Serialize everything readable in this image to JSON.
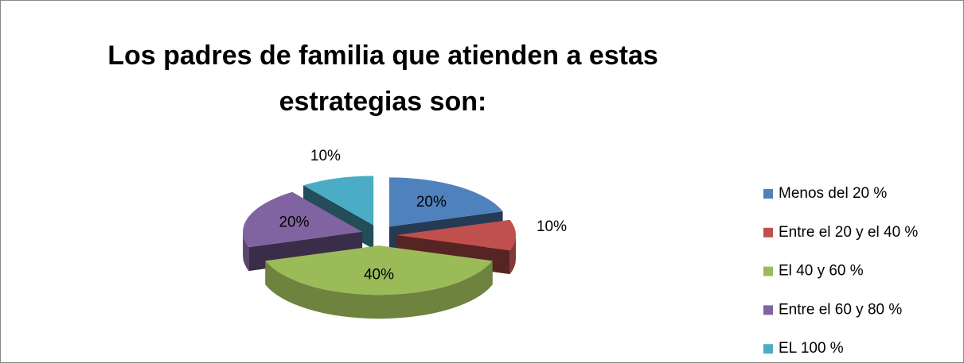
{
  "chart_data": {
    "type": "pie",
    "title": "Los padres de familia que atienden a estas estrategias son:",
    "categories": [
      "Menos del 20 %",
      "Entre el 20 y el 40 %",
      "El 40 y 60 %",
      "Entre el 60 y 80 %",
      "EL 100 %"
    ],
    "values": [
      20,
      10,
      40,
      20,
      10
    ],
    "value_labels": [
      "20%",
      "10%",
      "40%",
      "20%",
      "10%"
    ],
    "colors": [
      "#4f81bd",
      "#c0504d",
      "#9bbb59",
      "#8064a2",
      "#4bacc6"
    ],
    "legend": "right"
  }
}
